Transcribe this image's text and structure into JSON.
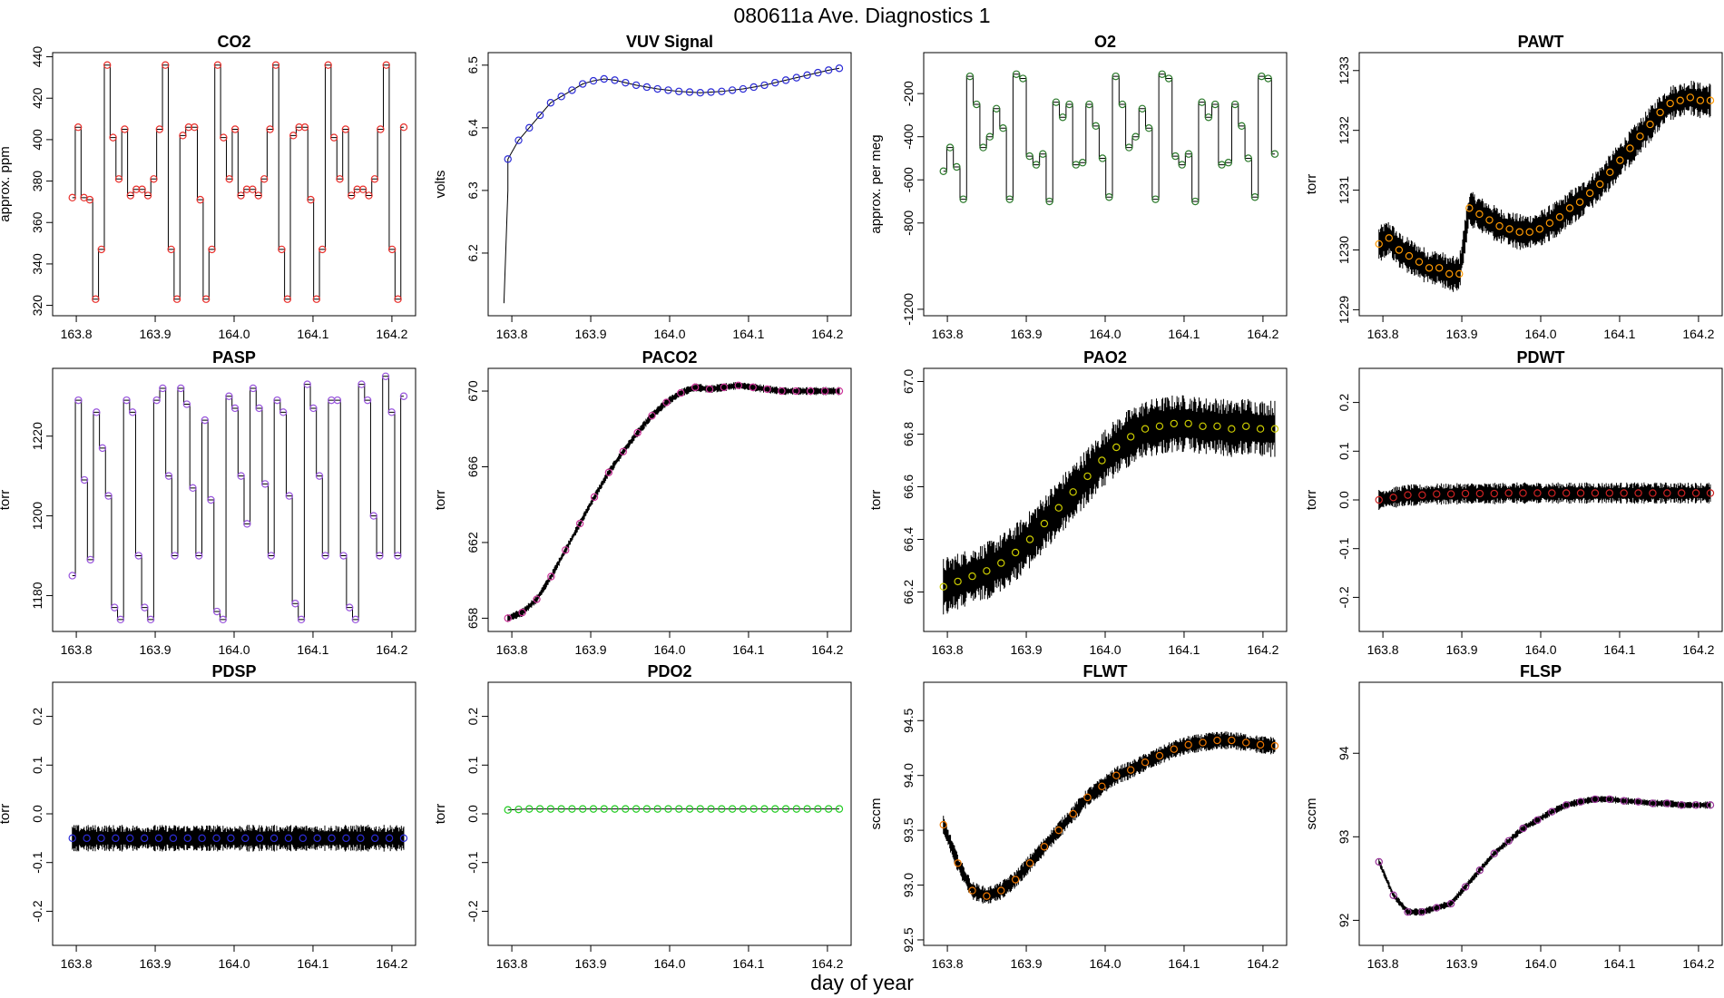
{
  "figure": {
    "title": "080611a   Ave. Diagnostics 1",
    "xlabel": "day of year"
  },
  "chart_data": [
    {
      "type": "line",
      "title": "CO2",
      "ylabel": "approx. ppm",
      "ylim": [
        315,
        442
      ],
      "yticks": [
        320,
        340,
        360,
        380,
        400,
        420,
        440
      ],
      "xlim": [
        163.77,
        164.23
      ],
      "xticks": [
        "163.8",
        "163.9",
        "164.0",
        "164.1",
        "164.2"
      ],
      "color": "#e8302c",
      "style": "step",
      "marker_values": [
        372,
        406,
        372,
        371,
        323,
        347,
        436,
        401,
        381,
        405,
        373,
        376,
        376,
        373,
        381,
        405,
        436,
        347,
        323,
        402,
        406,
        406,
        371,
        323,
        347,
        436,
        401,
        381,
        405,
        373,
        376,
        376,
        373,
        381,
        405,
        436,
        347,
        323,
        402,
        406,
        406,
        371,
        323,
        347,
        436,
        401,
        381,
        405,
        373,
        376,
        376,
        373,
        381,
        405,
        436,
        347,
        323,
        406
      ]
    },
    {
      "type": "line",
      "title": "VUV Signal",
      "ylabel": "volts",
      "ylim": [
        6.1,
        6.52
      ],
      "yticks": [
        6.2,
        6.3,
        6.4,
        6.5
      ],
      "xlim": [
        163.77,
        164.23
      ],
      "xticks": [
        "163.8",
        "163.9",
        "164.0",
        "164.1",
        "164.2"
      ],
      "color": "#2b2bd6",
      "style": "smooth",
      "marker_values": [
        6.35,
        6.38,
        6.4,
        6.42,
        6.44,
        6.45,
        6.46,
        6.47,
        6.475,
        6.478,
        6.476,
        6.472,
        6.468,
        6.465,
        6.462,
        6.46,
        6.458,
        6.457,
        6.456,
        6.457,
        6.458,
        6.46,
        6.462,
        6.465,
        6.468,
        6.472,
        6.476,
        6.48,
        6.484,
        6.488,
        6.492,
        6.495
      ]
    },
    {
      "type": "line",
      "title": "O2",
      "ylabel": "approx. per meg",
      "ylim": [
        -1230,
        -10
      ],
      "yticks": [
        -1200,
        -800,
        -600,
        -400,
        -200
      ],
      "xlim": [
        163.77,
        164.23
      ],
      "xticks": [
        "163.8",
        "163.9",
        "164.0",
        "164.1",
        "164.2"
      ],
      "color": "#2c7a2c",
      "style": "step",
      "marker_values": [
        -560,
        -450,
        -540,
        -690,
        -120,
        -250,
        -450,
        -400,
        -270,
        -360,
        -690,
        -110,
        -130,
        -490,
        -530,
        -480,
        -700,
        -240,
        -310,
        -250,
        -530,
        -520,
        -250,
        -350,
        -500,
        -680,
        -120,
        -250,
        -450,
        -400,
        -270,
        -360,
        -690,
        -110,
        -130,
        -490,
        -530,
        -480,
        -700,
        -240,
        -310,
        -250,
        -530,
        -520,
        -250,
        -350,
        -500,
        -680,
        -120,
        -130,
        -480
      ]
    },
    {
      "type": "line",
      "title": "PAWT",
      "ylabel": "torr",
      "ylim": [
        1228.9,
        1233.3
      ],
      "yticks": [
        1229,
        1230,
        1231,
        1232,
        1233
      ],
      "xlim": [
        163.77,
        164.23
      ],
      "xticks": [
        "163.8",
        "163.9",
        "164.0",
        "164.1",
        "164.2"
      ],
      "color": "#ff9900",
      "style": "noisy",
      "noise": 0.55,
      "marker_values": [
        1230.1,
        1230.2,
        1230.0,
        1229.9,
        1229.8,
        1229.7,
        1229.7,
        1229.6,
        1229.6,
        1230.7,
        1230.6,
        1230.5,
        1230.4,
        1230.35,
        1230.3,
        1230.3,
        1230.35,
        1230.45,
        1230.55,
        1230.7,
        1230.8,
        1230.95,
        1231.1,
        1231.3,
        1231.5,
        1231.7,
        1231.9,
        1232.1,
        1232.3,
        1232.45,
        1232.5,
        1232.55,
        1232.5,
        1232.5
      ]
    },
    {
      "type": "line",
      "title": "PASP",
      "ylabel": "torr",
      "ylim": [
        1171,
        1237
      ],
      "yticks": [
        1180,
        1200,
        1220
      ],
      "xlim": [
        163.77,
        164.23
      ],
      "xticks": [
        "163.8",
        "163.9",
        "164.0",
        "164.1",
        "164.2"
      ],
      "color": "#9955dd",
      "style": "pressure",
      "marker_values": [
        1185,
        1229,
        1209,
        1189,
        1226,
        1217,
        1205,
        1177,
        1174,
        1229,
        1226,
        1190,
        1177,
        1174,
        1229,
        1232,
        1210,
        1190,
        1232,
        1228,
        1207,
        1190,
        1224,
        1204,
        1176,
        1174,
        1230,
        1227,
        1210,
        1198,
        1232,
        1227,
        1208,
        1190,
        1229,
        1226,
        1205,
        1178,
        1174,
        1233,
        1227,
        1210,
        1190,
        1229,
        1229,
        1190,
        1177,
        1174,
        1233,
        1229,
        1200,
        1190,
        1235,
        1226,
        1190,
        1230
      ]
    },
    {
      "type": "line",
      "title": "PACO2",
      "ylabel": "torr",
      "ylim": [
        657.3,
        671.2
      ],
      "yticks": [
        658,
        662,
        666,
        670
      ],
      "xlim": [
        163.77,
        164.23
      ],
      "xticks": [
        "163.8",
        "163.9",
        "164.0",
        "164.1",
        "164.2"
      ],
      "color": "#cc3399",
      "style": "noisy",
      "noise": 0.4,
      "marker_values": [
        658.0,
        658.3,
        659.0,
        660.2,
        661.6,
        663.0,
        664.4,
        665.7,
        666.8,
        667.8,
        668.7,
        669.4,
        669.9,
        670.2,
        670.1,
        670.2,
        670.3,
        670.2,
        670.1,
        670.0,
        670.0,
        670.0,
        670.0,
        670.0
      ]
    },
    {
      "type": "line",
      "title": "PAO2",
      "ylabel": "torr",
      "ylim": [
        66.05,
        67.05
      ],
      "yticks": [
        66.2,
        66.4,
        66.6,
        66.8,
        67.0
      ],
      "xlim": [
        163.77,
        164.23
      ],
      "xticks": [
        "163.8",
        "163.9",
        "164.0",
        "164.1",
        "164.2"
      ],
      "color": "#cccc00",
      "style": "noisy",
      "noise": 0.2,
      "marker_values": [
        66.22,
        66.24,
        66.26,
        66.28,
        66.31,
        66.35,
        66.4,
        66.46,
        66.52,
        66.58,
        66.64,
        66.7,
        66.75,
        66.79,
        66.82,
        66.83,
        66.84,
        66.84,
        66.83,
        66.83,
        66.82,
        66.83,
        66.82,
        66.82
      ]
    },
    {
      "type": "line",
      "title": "PDWT",
      "ylabel": "torr",
      "ylim": [
        -0.27,
        0.27
      ],
      "yticks": [
        -0.2,
        -0.1,
        0.0,
        0.1,
        0.2
      ],
      "xlim": [
        163.77,
        164.23
      ],
      "xticks": [
        "163.8",
        "163.9",
        "164.0",
        "164.1",
        "164.2"
      ],
      "color": "#cc2222",
      "style": "noisy",
      "noise": 0.04,
      "marker_values": [
        0.0,
        0.005,
        0.01,
        0.01,
        0.012,
        0.012,
        0.013,
        0.013,
        0.013,
        0.014,
        0.014,
        0.014,
        0.014,
        0.014,
        0.014,
        0.014,
        0.014,
        0.014,
        0.014,
        0.014,
        0.014,
        0.014,
        0.014,
        0.014
      ]
    },
    {
      "type": "line",
      "title": "PDSP",
      "ylabel": "torr",
      "ylim": [
        -0.27,
        0.27
      ],
      "yticks": [
        -0.2,
        -0.1,
        0.0,
        0.1,
        0.2
      ],
      "xlim": [
        163.77,
        164.23
      ],
      "xticks": [
        "163.8",
        "163.9",
        "164.0",
        "164.1",
        "164.2"
      ],
      "color": "#2b2bd6",
      "style": "noisy",
      "noise": 0.05,
      "marker_values": [
        -0.05,
        -0.05,
        -0.05,
        -0.05,
        -0.05,
        -0.05,
        -0.05,
        -0.05,
        -0.05,
        -0.05,
        -0.05,
        -0.05,
        -0.05,
        -0.05,
        -0.05,
        -0.05,
        -0.05,
        -0.05,
        -0.05,
        -0.05,
        -0.05,
        -0.05,
        -0.05,
        -0.05
      ]
    },
    {
      "type": "line",
      "title": "PDO2",
      "ylabel": "torr",
      "ylim": [
        -0.27,
        0.27
      ],
      "yticks": [
        -0.2,
        -0.1,
        0.0,
        0.1,
        0.2
      ],
      "xlim": [
        163.77,
        164.23
      ],
      "xticks": [
        "163.8",
        "163.9",
        "164.0",
        "164.1",
        "164.2"
      ],
      "color": "#22cc22",
      "style": "smooth",
      "marker_values": [
        0.008,
        0.009,
        0.01,
        0.01,
        0.01,
        0.01,
        0.01,
        0.01,
        0.01,
        0.01,
        0.01,
        0.01,
        0.01,
        0.01,
        0.01,
        0.01,
        0.01,
        0.01,
        0.01,
        0.01,
        0.01,
        0.01,
        0.01,
        0.01,
        0.01,
        0.01,
        0.01,
        0.01,
        0.01,
        0.01,
        0.01,
        0.01
      ]
    },
    {
      "type": "line",
      "title": "FLWT",
      "ylabel": "sccm",
      "ylim": [
        92.45,
        94.85
      ],
      "yticks": [
        92.5,
        93.0,
        93.5,
        94.0,
        94.5
      ],
      "xlim": [
        163.77,
        164.23
      ],
      "xticks": [
        "163.8",
        "163.9",
        "164.0",
        "164.1",
        "164.2"
      ],
      "color": "#ee7700",
      "style": "noisy",
      "noise": 0.15,
      "marker_values": [
        93.55,
        93.2,
        92.95,
        92.9,
        92.95,
        93.05,
        93.2,
        93.35,
        93.5,
        93.65,
        93.8,
        93.9,
        94.0,
        94.05,
        94.12,
        94.18,
        94.24,
        94.28,
        94.3,
        94.32,
        94.32,
        94.3,
        94.28,
        94.27
      ]
    },
    {
      "type": "line",
      "title": "FLSP",
      "ylabel": "sccm",
      "ylim": [
        91.7,
        94.85
      ],
      "yticks": [
        92.0,
        93.0,
        94.0
      ],
      "xlim": [
        163.77,
        164.23
      ],
      "xticks": [
        "163.8",
        "163.9",
        "164.0",
        "164.1",
        "164.2"
      ],
      "color": "#993399",
      "style": "noisy",
      "noise": 0.08,
      "marker_values": [
        92.7,
        92.3,
        92.1,
        92.1,
        92.15,
        92.2,
        92.4,
        92.6,
        92.8,
        92.95,
        93.1,
        93.2,
        93.3,
        93.38,
        93.42,
        93.45,
        93.45,
        93.43,
        93.42,
        93.4,
        93.4,
        93.38,
        93.38,
        93.38
      ]
    }
  ]
}
